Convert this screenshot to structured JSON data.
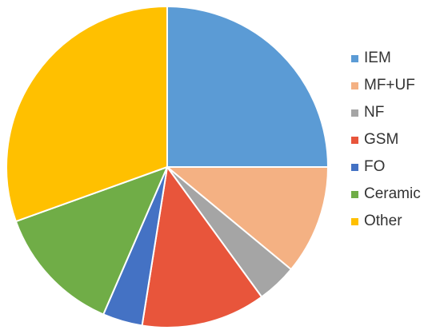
{
  "chart_data": {
    "type": "pie",
    "title": "",
    "slices": [
      {
        "label": "IEM",
        "value": 25.0,
        "color": "#5B9BD5"
      },
      {
        "label": "MF+UF",
        "value": 11.0,
        "color": "#F4B183"
      },
      {
        "label": "NF",
        "value": 4.0,
        "color": "#A5A5A5"
      },
      {
        "label": "GSM",
        "value": 12.5,
        "color": "#E8553B"
      },
      {
        "label": "FO",
        "value": 4.0,
        "color": "#4472C4"
      },
      {
        "label": "Ceramic",
        "value": 13.0,
        "color": "#70AD47"
      },
      {
        "label": "Other",
        "value": 30.5,
        "color": "#FFC000"
      }
    ],
    "start_angle": "12 o'clock",
    "direction": "clockwise",
    "legend_position": "right",
    "data_labels": false
  }
}
